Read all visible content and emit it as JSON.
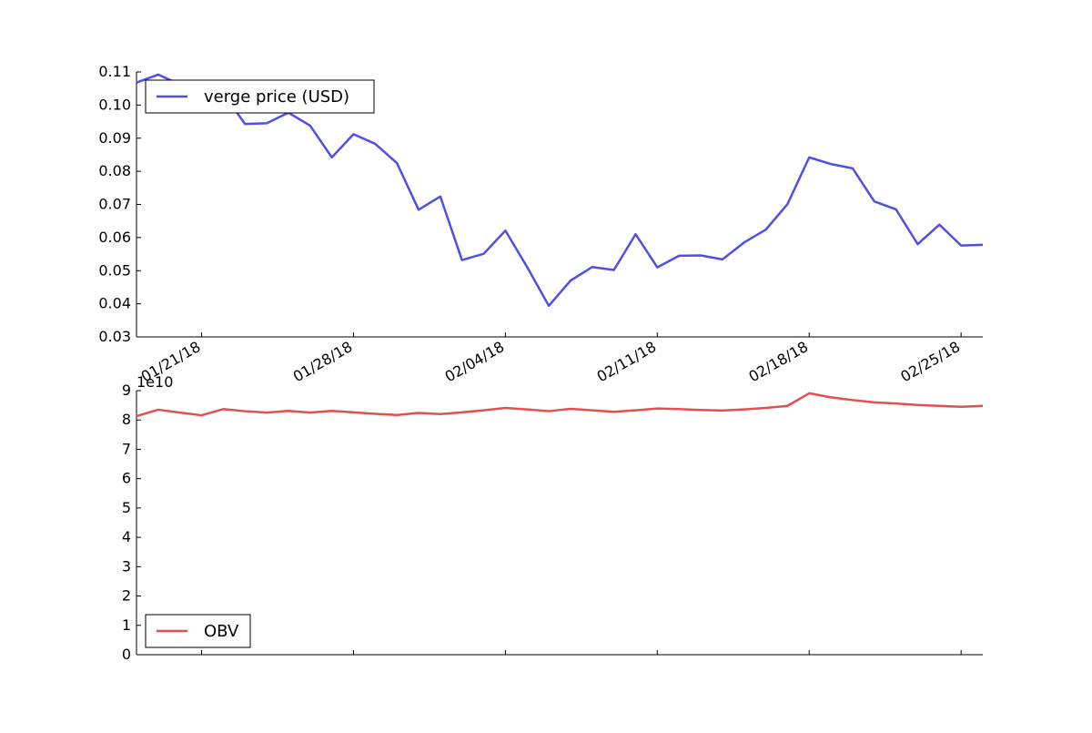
{
  "chart_data": [
    {
      "type": "line",
      "title": "",
      "xlabel": "",
      "ylabel": "",
      "x_tick_labels": [
        "01/21/18",
        "01/28/18",
        "02/04/18",
        "02/11/18",
        "02/18/18",
        "02/25/18"
      ],
      "xlim": [
        "2018-01-18",
        "2018-02-26"
      ],
      "ylim": [
        0.03,
        0.11
      ],
      "y_ticks": [
        "0.03",
        "0.04",
        "0.05",
        "0.06",
        "0.07",
        "0.08",
        "0.09",
        "0.10",
        "0.11"
      ],
      "grid": false,
      "legend_position": "top-left",
      "series": [
        {
          "name": "verge price (USD)",
          "color": "#4f4fe6",
          "x": [
            "2018-01-18",
            "2018-01-19",
            "2018-01-20",
            "2018-01-21",
            "2018-01-22",
            "2018-01-23",
            "2018-01-24",
            "2018-01-25",
            "2018-01-26",
            "2018-01-27",
            "2018-01-28",
            "2018-01-29",
            "2018-01-30",
            "2018-01-31",
            "2018-02-01",
            "2018-02-02",
            "2018-02-03",
            "2018-02-04",
            "2018-02-05",
            "2018-02-06",
            "2018-02-07",
            "2018-02-08",
            "2018-02-09",
            "2018-02-10",
            "2018-02-11",
            "2018-02-12",
            "2018-02-13",
            "2018-02-14",
            "2018-02-15",
            "2018-02-16",
            "2018-02-17",
            "2018-02-18",
            "2018-02-19",
            "2018-02-20",
            "2018-02-21",
            "2018-02-22",
            "2018-02-23",
            "2018-02-24",
            "2018-02-25",
            "2018-02-26"
          ],
          "values": [
            0.1068,
            0.1092,
            0.1062,
            0.1045,
            0.1035,
            0.0943,
            0.0945,
            0.0977,
            0.0938,
            0.0842,
            0.0912,
            0.0883,
            0.0825,
            0.0684,
            0.0724,
            0.0532,
            0.0551,
            0.0621,
            0.0511,
            0.0394,
            0.047,
            0.0511,
            0.0502,
            0.061,
            0.051,
            0.0545,
            0.0546,
            0.0534,
            0.0585,
            0.0624,
            0.0701,
            0.0842,
            0.0822,
            0.0809,
            0.0709,
            0.0685,
            0.058,
            0.0639,
            0.0576,
            0.0578
          ]
        }
      ]
    },
    {
      "type": "line",
      "title": "",
      "xlabel": "",
      "ylabel": "",
      "y_offset_label": "1e10",
      "xlim": [
        "2018-01-18",
        "2018-02-26"
      ],
      "ylim": [
        0,
        9
      ],
      "y_ticks": [
        "0",
        "1",
        "2",
        "3",
        "4",
        "5",
        "6",
        "7",
        "8",
        "9"
      ],
      "grid": false,
      "legend_position": "bottom-left",
      "series": [
        {
          "name": "OBV",
          "color": "#e64f4f",
          "x": [
            "2018-01-18",
            "2018-01-19",
            "2018-01-20",
            "2018-01-21",
            "2018-01-22",
            "2018-01-23",
            "2018-01-24",
            "2018-01-25",
            "2018-01-26",
            "2018-01-27",
            "2018-01-28",
            "2018-01-29",
            "2018-01-30",
            "2018-01-31",
            "2018-02-01",
            "2018-02-02",
            "2018-02-03",
            "2018-02-04",
            "2018-02-05",
            "2018-02-06",
            "2018-02-07",
            "2018-02-08",
            "2018-02-09",
            "2018-02-10",
            "2018-02-11",
            "2018-02-12",
            "2018-02-13",
            "2018-02-14",
            "2018-02-15",
            "2018-02-16",
            "2018-02-17",
            "2018-02-18",
            "2018-02-19",
            "2018-02-20",
            "2018-02-21",
            "2018-02-22",
            "2018-02-23",
            "2018-02-24",
            "2018-02-25",
            "2018-02-26"
          ],
          "values": [
            8.13,
            8.35,
            8.25,
            8.16,
            8.37,
            8.3,
            8.25,
            8.31,
            8.25,
            8.31,
            8.26,
            8.21,
            8.17,
            8.24,
            8.2,
            8.26,
            8.33,
            8.41,
            8.36,
            8.3,
            8.38,
            8.33,
            8.28,
            8.33,
            8.39,
            8.37,
            8.34,
            8.32,
            8.36,
            8.41,
            8.48,
            8.91,
            8.77,
            8.68,
            8.6,
            8.56,
            8.51,
            8.48,
            8.45,
            8.48
          ]
        }
      ]
    }
  ]
}
